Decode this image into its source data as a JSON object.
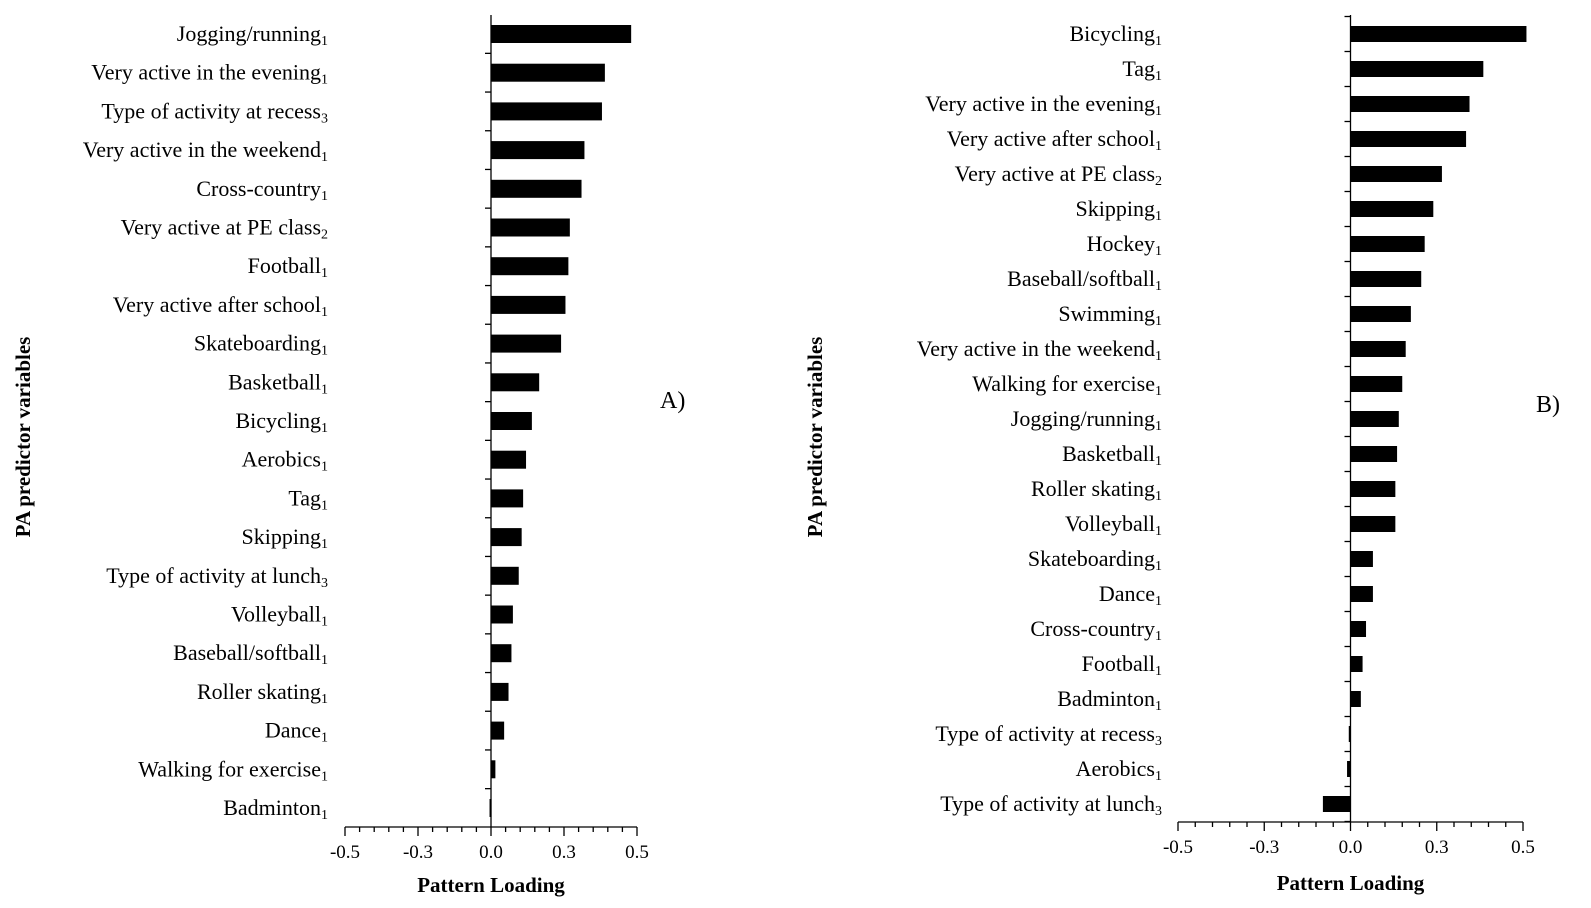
{
  "chart_data": [
    {
      "type": "bar",
      "orientation": "horizontal",
      "panel_label": "A)",
      "xlabel": "Pattern Loading",
      "ylabel": "PA predictor variables",
      "xlim": [
        -0.5,
        0.5
      ],
      "xticks": [
        "-0.5",
        "-0.3",
        "0.0",
        "0.3",
        "0.5"
      ],
      "categories": [
        {
          "name": "Jogging/running",
          "sub": "1"
        },
        {
          "name": "Very active in the evening",
          "sub": "1"
        },
        {
          "name": "Type of activity at recess",
          "sub": "3"
        },
        {
          "name": "Very active in the weekend",
          "sub": "1"
        },
        {
          "name": "Cross-country",
          "sub": "1"
        },
        {
          "name": "Very active at PE class",
          "sub": "2"
        },
        {
          "name": "Football",
          "sub": "1"
        },
        {
          "name": "Very active after school",
          "sub": "1"
        },
        {
          "name": "Skateboarding",
          "sub": "1"
        },
        {
          "name": "Basketball",
          "sub": "1"
        },
        {
          "name": "Bicycling",
          "sub": "1"
        },
        {
          "name": "Aerobics",
          "sub": "1"
        },
        {
          "name": "Tag",
          "sub": "1"
        },
        {
          "name": "Skipping",
          "sub": "1"
        },
        {
          "name": "Type of activity at lunch",
          "sub": "3"
        },
        {
          "name": "Volleyball",
          "sub": "1"
        },
        {
          "name": "Baseball/softball",
          "sub": "1"
        },
        {
          "name": "Roller skating",
          "sub": "1"
        },
        {
          "name": "Dance",
          "sub": "1"
        },
        {
          "name": "Walking for exercise",
          "sub": "1"
        },
        {
          "name": "Badminton",
          "sub": "1"
        }
      ],
      "values": [
        0.48,
        0.39,
        0.38,
        0.32,
        0.31,
        0.27,
        0.265,
        0.255,
        0.24,
        0.165,
        0.14,
        0.12,
        0.11,
        0.105,
        0.095,
        0.075,
        0.07,
        0.06,
        0.045,
        0.015,
        -0.005
      ]
    },
    {
      "type": "bar",
      "orientation": "horizontal",
      "panel_label": "B)",
      "xlabel": "Pattern Loading",
      "ylabel": "PA predictor variables",
      "xlim": [
        -0.5,
        0.5
      ],
      "xticks": [
        "-0.5",
        "-0.3",
        "0.0",
        "0.3",
        "0.5"
      ],
      "categories": [
        {
          "name": "Bicycling",
          "sub": "1"
        },
        {
          "name": "Tag",
          "sub": "1"
        },
        {
          "name": "Very active in the evening",
          "sub": "1"
        },
        {
          "name": "Very active after school",
          "sub": "1"
        },
        {
          "name": "Very active at PE class",
          "sub": "2"
        },
        {
          "name": "Skipping",
          "sub": "1"
        },
        {
          "name": "Hockey",
          "sub": "1"
        },
        {
          "name": "Baseball/softball",
          "sub": "1"
        },
        {
          "name": "Swimming",
          "sub": "1"
        },
        {
          "name": "Very active in the weekend",
          "sub": "1"
        },
        {
          "name": "Walking for exercise",
          "sub": "1"
        },
        {
          "name": "Jogging/running",
          "sub": "1"
        },
        {
          "name": "Basketball",
          "sub": "1"
        },
        {
          "name": "Roller skating",
          "sub": "1"
        },
        {
          "name": "Volleyball",
          "sub": "1"
        },
        {
          "name": "Skateboarding",
          "sub": "1"
        },
        {
          "name": "Dance",
          "sub": "1"
        },
        {
          "name": "Cross-country",
          "sub": "1"
        },
        {
          "name": "Football",
          "sub": "1"
        },
        {
          "name": "Badminton",
          "sub": "1"
        },
        {
          "name": "Type of activity at recess",
          "sub": "3"
        },
        {
          "name": "Aerobics",
          "sub": "1"
        },
        {
          "name": "Type of activity at lunch",
          "sub": "3"
        }
      ],
      "values": [
        0.51,
        0.385,
        0.345,
        0.335,
        0.265,
        0.24,
        0.215,
        0.205,
        0.175,
        0.16,
        0.15,
        0.14,
        0.135,
        0.13,
        0.13,
        0.065,
        0.065,
        0.045,
        0.035,
        0.03,
        -0.005,
        -0.01,
        -0.08
      ]
    }
  ]
}
